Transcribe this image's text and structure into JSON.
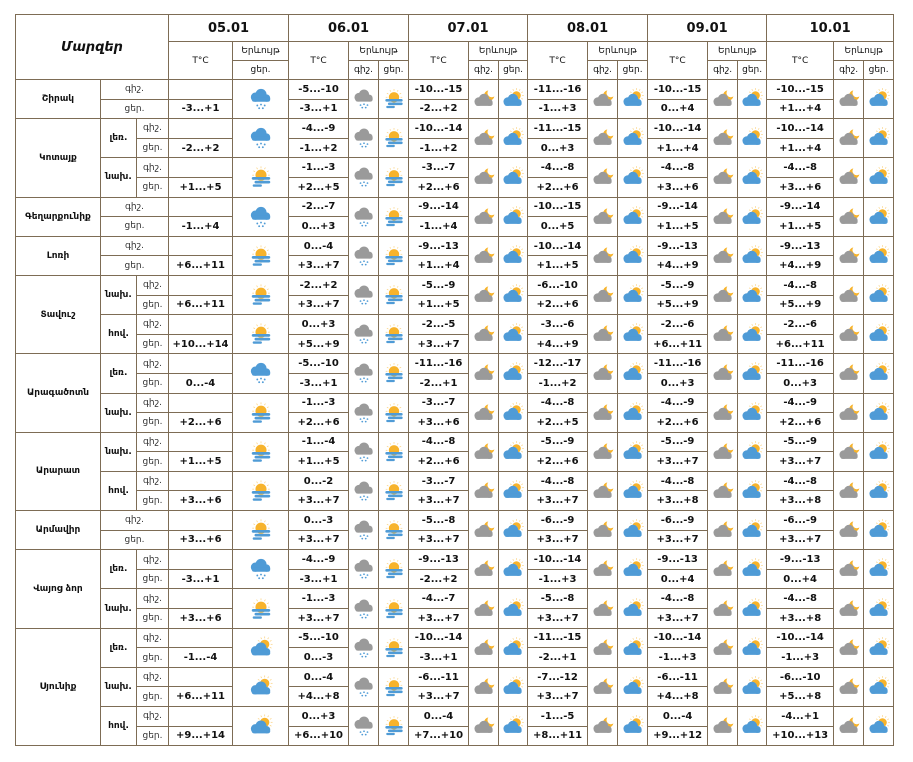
{
  "header": {
    "title": "Մարզեր",
    "dates": [
      "05.01",
      "06.01",
      "07.01",
      "08.01",
      "09.01",
      "10.01"
    ],
    "temp_label": "T°C",
    "phenomenon_label": "Երևույթ",
    "night_label": "գիշ.",
    "day_label": "ցեր."
  },
  "colors": {
    "border": "#7d6c55",
    "cloud_blue": "#4f9bd6",
    "cloud_gray": "#9a9a9a",
    "sun": "#f7b32b"
  },
  "icon_types": {
    "snow": "snow-cloud-icon",
    "sun-fog": "sun-fog-icon",
    "partly": "partly-cloudy-icon",
    "night-snow": "night-snow-cloud-icon",
    "night-cloudy": "night-cloudy-moon-icon",
    "day-partly": "day-partly-cloudy-icon"
  },
  "regions": [
    {
      "name": "Շիրակ",
      "groups": [
        {
          "sub": "",
          "d05": "-3...+1",
          "i05": "snow",
          "days": [
            [
              "-5...-10",
              "-3...+1"
            ],
            [
              "-10...-15",
              "-2...+2"
            ],
            [
              "-11...-16",
              "-1...+3"
            ],
            [
              "-10...-15",
              "0...+4"
            ],
            [
              "-10...-15",
              "+1...+4"
            ]
          ]
        }
      ]
    },
    {
      "name": "Կոտայք",
      "groups": [
        {
          "sub": "լեռ.",
          "d05": "-2...+2",
          "i05": "snow",
          "days": [
            [
              "-4...-9",
              "-1...+2"
            ],
            [
              "-10...-14",
              "-1...+2"
            ],
            [
              "-11...-15",
              "0...+3"
            ],
            [
              "-10...-14",
              "+1...+4"
            ],
            [
              "-10...-14",
              "+1...+4"
            ]
          ]
        },
        {
          "sub": "նախ.",
          "d05": "+1...+5",
          "i05": "sun-fog",
          "days": [
            [
              "-1...-3",
              "+2...+5"
            ],
            [
              "-3...-7",
              "+2...+6"
            ],
            [
              "-4...-8",
              "+2...+6"
            ],
            [
              "-4...-8",
              "+3...+6"
            ],
            [
              "-4...-8",
              "+3...+6"
            ]
          ]
        }
      ]
    },
    {
      "name": "Գեղարքունիք",
      "groups": [
        {
          "sub": "",
          "d05": "-1...+4",
          "i05": "snow",
          "days": [
            [
              "-2...-7",
              "0...+3"
            ],
            [
              "-9...-14",
              "-1...+4"
            ],
            [
              "-10...-15",
              "0...+5"
            ],
            [
              "-9...-14",
              "+1...+5"
            ],
            [
              "-9...-14",
              "+1...+5"
            ]
          ]
        }
      ]
    },
    {
      "name": "Լոռի",
      "groups": [
        {
          "sub": "",
          "d05": "+6...+11",
          "i05": "sun-fog",
          "days": [
            [
              "0...-4",
              "+3...+7"
            ],
            [
              "-9...-13",
              "+1...+4"
            ],
            [
              "-10...-14",
              "+1...+5"
            ],
            [
              "-9...-13",
              "+4...+9"
            ],
            [
              "-9...-13",
              "+4...+9"
            ]
          ]
        }
      ]
    },
    {
      "name": "Տավուշ",
      "groups": [
        {
          "sub": "նախ.",
          "d05": "+6...+11",
          "i05": "sun-fog",
          "days": [
            [
              "-2...+2",
              "+3...+7"
            ],
            [
              "-5...-9",
              "+1...+5"
            ],
            [
              "-6...-10",
              "+2...+6"
            ],
            [
              "-5...-9",
              "+5...+9"
            ],
            [
              "-4...-8",
              "+5...+9"
            ]
          ]
        },
        {
          "sub": "հով.",
          "d05": "+10...+14",
          "i05": "sun-fog",
          "days": [
            [
              "0...+3",
              "+5...+9"
            ],
            [
              "-2...-5",
              "+3...+7"
            ],
            [
              "-3...-6",
              "+4...+9"
            ],
            [
              "-2...-6",
              "+6...+11"
            ],
            [
              "-2...-6",
              "+6...+11"
            ]
          ]
        }
      ]
    },
    {
      "name": "Արագածոտն",
      "groups": [
        {
          "sub": "լեռ.",
          "d05": "0...-4",
          "i05": "snow",
          "days": [
            [
              "-5...-10",
              "-3...+1"
            ],
            [
              "-11...-16",
              "-2...+1"
            ],
            [
              "-12...-17",
              "-1...+2"
            ],
            [
              "-11...-16",
              "0...+3"
            ],
            [
              "-11...-16",
              "0...+3"
            ]
          ]
        },
        {
          "sub": "նախ.",
          "d05": "+2...+6",
          "i05": "sun-fog",
          "days": [
            [
              "-1...-3",
              "+2...+6"
            ],
            [
              "-3...-7",
              "+3...+6"
            ],
            [
              "-4...-8",
              "+2...+5"
            ],
            [
              "-4...-9",
              "+2...+6"
            ],
            [
              "-4...-9",
              "+2...+6"
            ]
          ]
        }
      ]
    },
    {
      "name": "Արարատ",
      "groups": [
        {
          "sub": "նախ.",
          "d05": "+1...+5",
          "i05": "sun-fog",
          "days": [
            [
              "-1...-4",
              "+1...+5"
            ],
            [
              "-4...-8",
              "+2...+6"
            ],
            [
              "-5...-9",
              "+2...+6"
            ],
            [
              "-5...-9",
              "+3...+7"
            ],
            [
              "-5...-9",
              "+3...+7"
            ]
          ]
        },
        {
          "sub": "հով.",
          "d05": "+3...+6",
          "i05": "sun-fog",
          "days": [
            [
              "0...-2",
              "+3...+7"
            ],
            [
              "-3...-7",
              "+3...+7"
            ],
            [
              "-4...-8",
              "+3...+7"
            ],
            [
              "-4...-8",
              "+3...+8"
            ],
            [
              "-4...-8",
              "+3...+8"
            ]
          ]
        }
      ]
    },
    {
      "name": "Արմավիր",
      "groups": [
        {
          "sub": "",
          "d05": "+3...+6",
          "i05": "sun-fog",
          "days": [
            [
              "0...-3",
              "+3...+7"
            ],
            [
              "-5...-8",
              "+3...+7"
            ],
            [
              "-6...-9",
              "+3...+7"
            ],
            [
              "-6...-9",
              "+3...+7"
            ],
            [
              "-6...-9",
              "+3...+7"
            ]
          ]
        }
      ]
    },
    {
      "name": "Վայոց ձոր",
      "groups": [
        {
          "sub": "լեռ.",
          "d05": "-3...+1",
          "i05": "snow",
          "days": [
            [
              "-4...-9",
              "-3...+1"
            ],
            [
              "-9...-13",
              "-2...+2"
            ],
            [
              "-10...-14",
              "-1...+3"
            ],
            [
              "-9...-13",
              "0...+4"
            ],
            [
              "-9...-13",
              "0...+4"
            ]
          ]
        },
        {
          "sub": "նախ.",
          "d05": "+3...+6",
          "i05": "sun-fog",
          "days": [
            [
              "-1...-3",
              "+3...+7"
            ],
            [
              "-4...-7",
              "+3...+7"
            ],
            [
              "-5...-8",
              "+3...+7"
            ],
            [
              "-4...-8",
              "+3...+7"
            ],
            [
              "-4...-8",
              "+3...+8"
            ]
          ]
        }
      ]
    },
    {
      "name": "Սյունիք",
      "groups": [
        {
          "sub": "լեռ.",
          "d05": "-1...-4",
          "i05": "partly",
          "days": [
            [
              "-5...-10",
              "0...-3"
            ],
            [
              "-10...-14",
              "-3...+1"
            ],
            [
              "-11...-15",
              "-2...+1"
            ],
            [
              "-10...-14",
              "-1...+3"
            ],
            [
              "-10...-14",
              "-1...+3"
            ]
          ]
        },
        {
          "sub": "նախ.",
          "d05": "+6...+11",
          "i05": "partly",
          "days": [
            [
              "0...-4",
              "+4...+8"
            ],
            [
              "-6...-11",
              "+3...+7"
            ],
            [
              "-7...-12",
              "+3...+7"
            ],
            [
              "-6...-11",
              "+4...+8"
            ],
            [
              "-6...-10",
              "+5...+8"
            ]
          ]
        },
        {
          "sub": "հով.",
          "d05": "+9...+14",
          "i05": "partly",
          "days": [
            [
              "0...+3",
              "+6...+10"
            ],
            [
              "0...-4",
              "+7...+10"
            ],
            [
              "-1...-5",
              "+8...+11"
            ],
            [
              "0...-4",
              "+9...+12"
            ],
            [
              "-4...+1",
              "+10...+13"
            ]
          ]
        }
      ]
    }
  ],
  "day_icons": {
    "06": [
      "night-snow",
      "sun-fog"
    ],
    "07": [
      "night-cloudy",
      "day-partly"
    ],
    "08": [
      "night-cloudy",
      "day-partly"
    ],
    "09": [
      "night-cloudy",
      "day-partly"
    ],
    "10": [
      "night-cloudy",
      "day-partly"
    ]
  }
}
